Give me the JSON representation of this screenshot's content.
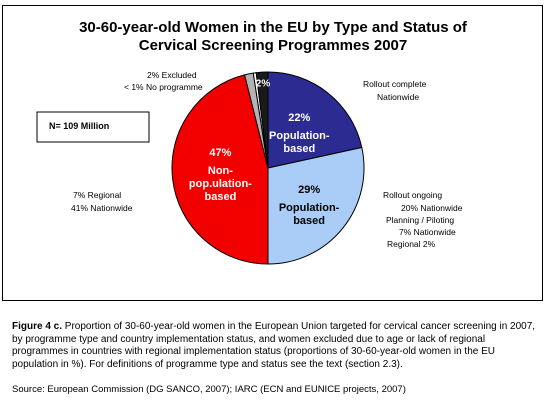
{
  "chart_data": {
    "type": "pie",
    "title_line1": "30-60-year-old Women in the EU by Type and Status of",
    "title_line2": "Cervical Screening Programmes 2007",
    "n_label": "N= 109 Million",
    "slices": [
      {
        "key": "rollout_complete",
        "value": 22,
        "pct_label": "22%",
        "inner_label": [
          "Population-",
          "based"
        ],
        "color": "#2b2b92"
      },
      {
        "key": "rollout_ongoing",
        "value": 29,
        "pct_label": "29%",
        "inner_label": [
          "Population-",
          "based"
        ],
        "color": "#a9cdf7"
      },
      {
        "key": "non_population",
        "value": 47,
        "pct_label": "47%",
        "inner_label": [
          "Non-",
          "pop.ulation-",
          "based"
        ],
        "color": "#f20000"
      },
      {
        "key": "excluded",
        "value": 1.5,
        "pct_label": "",
        "inner_label": [],
        "color": "#b3b3b3"
      },
      {
        "key": "no_programme",
        "value": 0.5,
        "pct_label": "",
        "inner_label": [],
        "color": "#ffffff"
      },
      {
        "key": "excluded_2",
        "value": 2,
        "pct_label": "2%",
        "inner_label": [],
        "color": "#1a1a1a"
      }
    ],
    "callouts": {
      "rollout_complete": [
        "Rollout complete",
        "Nationwide"
      ],
      "rollout_ongoing": [
        "Rollout ongoing",
        "20% Nationwide",
        "Planning / Piloting",
        "7% Nationwide",
        "Regional 2%"
      ],
      "non_population": [
        "7% Regional",
        "41% Nationwide"
      ],
      "excluded": [
        "2% Excluded",
        "< 1% No programme"
      ]
    }
  },
  "caption": {
    "label": "Figure 4 c.",
    "text": " Proportion of 30-60-year-old women in the European Union targeted for cervical cancer screening in 2007, by programme type and country implementation status, and women excluded due to age or lack of regional programmes in countries with regional implementation status (proportions of 30-60-year-old women in the EU population in %). For definitions of programme type and status see the text (section 2.3)."
  },
  "source": "Source: European Commission (DG SANCO, 2007); IARC (ECN and EUNICE projects, 2007)"
}
